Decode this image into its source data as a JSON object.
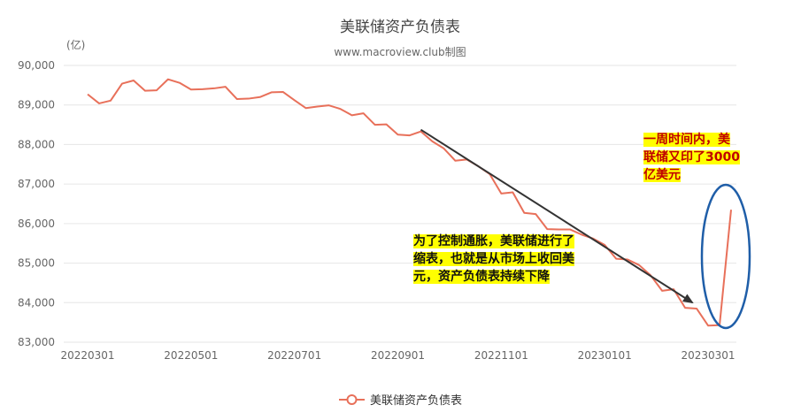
{
  "chart_data": {
    "type": "line",
    "title": "美联储资产负债表",
    "subtitle": "www.macroview.club制图",
    "ylabel": "(亿)",
    "ylim": [
      83000,
      90000
    ],
    "yticks": [
      "90,000",
      "89,000",
      "88,000",
      "87,000",
      "86,000",
      "85,000",
      "84,000",
      "83,000"
    ],
    "ytick_values": [
      90000,
      89000,
      88000,
      87000,
      86000,
      85000,
      84000,
      83000
    ],
    "xtick_labels": [
      "20220301",
      "20220501",
      "20220701",
      "20220901",
      "20221101",
      "20230101",
      "20230301"
    ],
    "xtick_index": [
      0,
      9,
      18,
      27,
      36,
      45,
      54
    ],
    "grid": true,
    "legend_position": "bottom-center",
    "color": "#e8705a",
    "series": [
      {
        "name": "美联储资产负债表",
        "values": [
          89270,
          89040,
          89110,
          89540,
          89620,
          89360,
          89370,
          89650,
          89560,
          89390,
          89400,
          89420,
          89460,
          89150,
          89160,
          89200,
          89320,
          89330,
          89120,
          88920,
          88960,
          88990,
          88900,
          88740,
          88790,
          88500,
          88510,
          88250,
          88230,
          88330,
          88080,
          87900,
          87590,
          87620,
          87450,
          87250,
          86760,
          86790,
          86270,
          86240,
          85860,
          85850,
          85850,
          85720,
          85620,
          85460,
          85110,
          85090,
          84950,
          84690,
          84300,
          84340,
          83870,
          83850,
          83420,
          83430,
          86350
        ]
      }
    ],
    "annotations": {
      "arrow_from_index": 29,
      "arrow_to_index": 52,
      "arrow_color": "#333333",
      "ellipse_color": "#1f5ea8"
    }
  },
  "callouts": {
    "taper_text": "为了控制通胀，美联储进行了缩表，也就是从市场上收回美元，资产负债表持续下降",
    "print_text": "一周时间内，美联储又印了3000亿美元"
  }
}
